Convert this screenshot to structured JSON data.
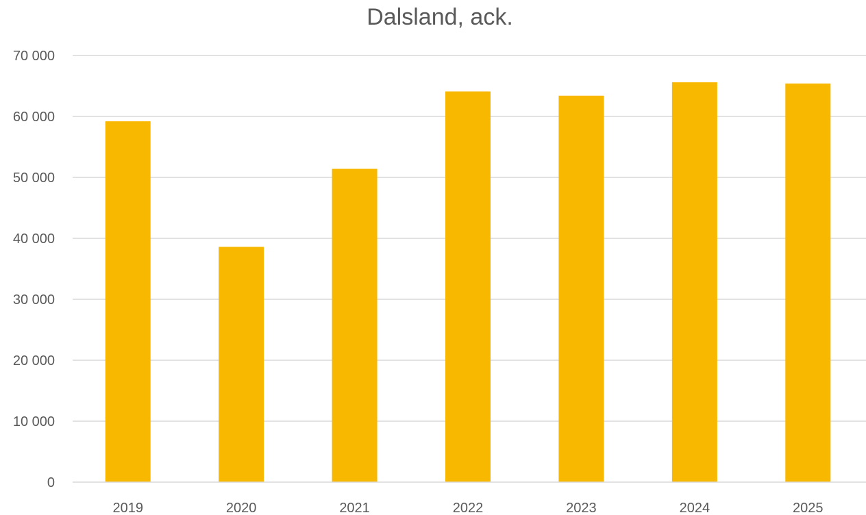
{
  "chart_data": {
    "type": "bar",
    "title": "Dalsland, ack.",
    "xlabel": "",
    "ylabel": "",
    "categories": [
      "2019",
      "2020",
      "2021",
      "2022",
      "2023",
      "2024",
      "2025"
    ],
    "series": [
      {
        "values": [
          59200,
          38600,
          51400,
          64100,
          63400,
          65600,
          65400
        ],
        "color": "#F9B800"
      }
    ],
    "ylim": [
      0,
      70000
    ],
    "yticks": [
      0,
      10000,
      20000,
      30000,
      40000,
      50000,
      60000,
      70000
    ],
    "ytick_labels": [
      "0",
      "10 000",
      "20 000",
      "30 000",
      "40 000",
      "50 000",
      "60 000",
      "70 000"
    ],
    "grid": true,
    "legend": "none"
  }
}
